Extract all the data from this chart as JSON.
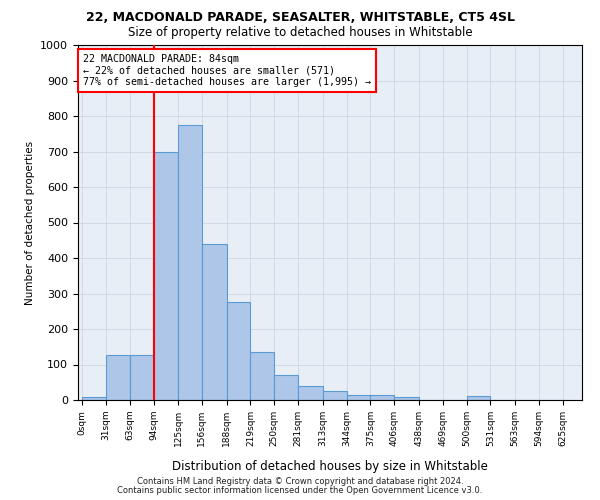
{
  "title_line1": "22, MACDONALD PARADE, SEASALTER, WHITSTABLE, CT5 4SL",
  "title_line2": "Size of property relative to detached houses in Whitstable",
  "xlabel": "Distribution of detached houses by size in Whitstable",
  "ylabel": "Number of detached properties",
  "bin_labels": [
    "0sqm",
    "31sqm",
    "63sqm",
    "94sqm",
    "125sqm",
    "156sqm",
    "188sqm",
    "219sqm",
    "250sqm",
    "281sqm",
    "313sqm",
    "344sqm",
    "375sqm",
    "406sqm",
    "438sqm",
    "469sqm",
    "500sqm",
    "531sqm",
    "563sqm",
    "594sqm",
    "625sqm"
  ],
  "bin_starts": [
    0,
    31,
    63,
    94,
    125,
    156,
    188,
    219,
    250,
    281,
    313,
    344,
    375,
    406,
    438,
    469,
    500,
    531,
    563,
    594,
    625
  ],
  "bar_values": [
    8,
    128,
    128,
    700,
    775,
    440,
    275,
    135,
    70,
    40,
    25,
    15,
    15,
    8,
    0,
    0,
    10,
    0,
    0,
    0
  ],
  "bar_color": "#aec6e8",
  "bar_edge_color": "#5b9bd5",
  "vline_x": 94,
  "vline_color": "red",
  "annotation_text": "22 MACDONALD PARADE: 84sqm\n← 22% of detached houses are smaller (571)\n77% of semi-detached houses are larger (1,995) →",
  "annotation_box_color": "white",
  "annotation_box_edge_color": "red",
  "ylim": [
    0,
    1000
  ],
  "yticks": [
    0,
    100,
    200,
    300,
    400,
    500,
    600,
    700,
    800,
    900,
    1000
  ],
  "grid_color": "#cdd5e3",
  "background_color": "#e8eef6",
  "footer_line1": "Contains HM Land Registry data © Crown copyright and database right 2024.",
  "footer_line2": "Contains public sector information licensed under the Open Government Licence v3.0."
}
